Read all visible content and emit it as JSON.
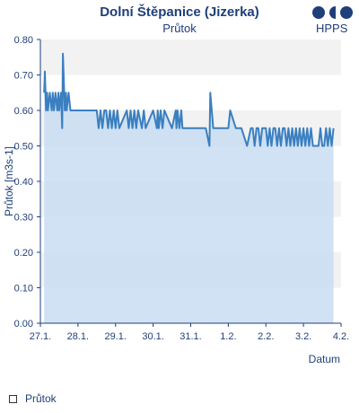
{
  "header": {
    "title": "Dolní Štěpanice (Jizerka)",
    "subtitle": "Průtok",
    "brand": "HPPS"
  },
  "colors": {
    "line": "#3a7fc0",
    "area": "#c8ddf2",
    "band": "#f2f2f2",
    "axis": "#1f3f7a",
    "text": "#1f3f7a"
  },
  "legend": {
    "label": "Průtok"
  },
  "chart_data": {
    "type": "area",
    "title": "Dolní Štěpanice (Jizerka)",
    "subtitle": "Průtok",
    "xlabel": "Datum",
    "ylabel": "Průtok [m3s-1]",
    "ylim": [
      0.0,
      0.8
    ],
    "yticks": [
      "0.00",
      "0.10",
      "0.20",
      "0.30",
      "0.40",
      "0.50",
      "0.60",
      "0.70",
      "0.80"
    ],
    "xlim_days": [
      0,
      8
    ],
    "xticks": [
      "27.1.",
      "28.1.",
      "29.1.",
      "30.1.",
      "31.1.",
      "1.2.",
      "2.2.",
      "3.2.",
      "4.2."
    ],
    "grid": "alternating horizontal bands",
    "legend_position": "bottom-left",
    "series": [
      {
        "name": "Průtok",
        "x_days": [
          0.1,
          0.12,
          0.15,
          0.18,
          0.2,
          0.25,
          0.3,
          0.33,
          0.36,
          0.4,
          0.45,
          0.48,
          0.5,
          0.55,
          0.58,
          0.6,
          0.65,
          0.68,
          0.7,
          0.75,
          0.8,
          1.0,
          1.5,
          1.55,
          1.6,
          1.65,
          1.7,
          1.75,
          1.8,
          1.85,
          1.9,
          1.95,
          2.0,
          2.05,
          2.1,
          2.3,
          2.35,
          2.4,
          2.45,
          2.5,
          2.55,
          2.6,
          2.7,
          2.75,
          2.8,
          3.0,
          3.1,
          3.12,
          3.15,
          3.2,
          3.25,
          3.3,
          3.5,
          3.6,
          3.62,
          3.65,
          3.7,
          3.75,
          3.78,
          4.0,
          4.2,
          4.4,
          4.5,
          4.52,
          4.6,
          4.8,
          5.0,
          5.05,
          5.2,
          5.3,
          5.35,
          5.5,
          5.6,
          5.65,
          5.7,
          5.75,
          5.8,
          5.85,
          5.9,
          5.95,
          6.0,
          6.05,
          6.1,
          6.15,
          6.2,
          6.25,
          6.3,
          6.35,
          6.4,
          6.45,
          6.5,
          6.55,
          6.6,
          6.65,
          6.7,
          6.75,
          6.8,
          6.85,
          6.9,
          6.95,
          7.0,
          7.05,
          7.1,
          7.15,
          7.2,
          7.25,
          7.3,
          7.35,
          7.4,
          7.45,
          7.5,
          7.55,
          7.6,
          7.65,
          7.7,
          7.75,
          7.8
        ],
        "values": [
          0.65,
          0.71,
          0.6,
          0.65,
          0.6,
          0.65,
          0.6,
          0.65,
          0.6,
          0.65,
          0.6,
          0.65,
          0.6,
          0.65,
          0.55,
          0.76,
          0.6,
          0.65,
          0.6,
          0.65,
          0.6,
          0.6,
          0.6,
          0.55,
          0.6,
          0.55,
          0.6,
          0.6,
          0.55,
          0.6,
          0.55,
          0.6,
          0.55,
          0.6,
          0.55,
          0.6,
          0.55,
          0.6,
          0.55,
          0.6,
          0.55,
          0.6,
          0.55,
          0.6,
          0.55,
          0.6,
          0.55,
          0.6,
          0.55,
          0.6,
          0.55,
          0.6,
          0.55,
          0.6,
          0.55,
          0.6,
          0.55,
          0.6,
          0.55,
          0.55,
          0.55,
          0.55,
          0.5,
          0.65,
          0.55,
          0.55,
          0.55,
          0.6,
          0.55,
          0.55,
          0.55,
          0.5,
          0.55,
          0.55,
          0.5,
          0.55,
          0.55,
          0.5,
          0.55,
          0.55,
          0.55,
          0.5,
          0.55,
          0.5,
          0.55,
          0.55,
          0.5,
          0.55,
          0.5,
          0.55,
          0.55,
          0.5,
          0.55,
          0.5,
          0.55,
          0.5,
          0.55,
          0.5,
          0.55,
          0.5,
          0.55,
          0.5,
          0.55,
          0.5,
          0.55,
          0.5,
          0.5,
          0.5,
          0.5,
          0.55,
          0.5,
          0.5,
          0.55,
          0.5,
          0.55,
          0.5,
          0.55
        ]
      }
    ]
  }
}
